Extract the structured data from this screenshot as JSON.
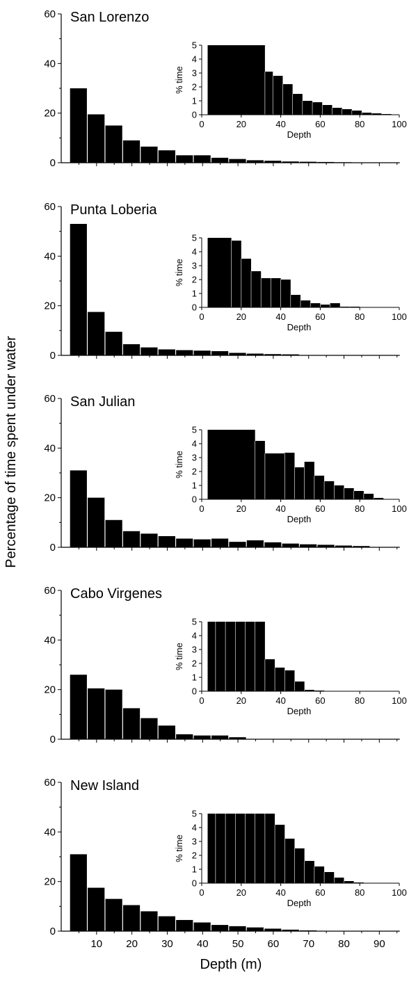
{
  "chart_data": {
    "type": "bar",
    "figure": {
      "ylabel": "Percentage of time spent under water",
      "xlabel": "Depth (m)",
      "x_ticks": [
        10,
        20,
        30,
        40,
        50,
        60,
        70,
        80,
        90
      ],
      "y_ticks": [
        0,
        20,
        40,
        60
      ]
    },
    "bin_width": 5,
    "panels": [
      {
        "title": "San Lorenzo",
        "x_range": [
          0,
          95
        ],
        "ylim": [
          0,
          60
        ],
        "bin_starts": [
          2.5,
          7.5,
          12.5,
          17.5,
          22.5,
          27.5,
          32.5,
          37.5,
          42.5,
          47.5,
          52.5,
          57.5,
          62.5,
          67.5,
          72.5,
          77.5
        ],
        "values": [
          30,
          19.5,
          15,
          9,
          6.5,
          5,
          3,
          3,
          2,
          1.5,
          1,
          0.8,
          0.5,
          0.4,
          0.3,
          0.2
        ],
        "inset": {
          "xlabel": "Depth",
          "ylabel": "% time",
          "x_ticks": [
            0,
            20,
            40,
            60,
            80,
            100
          ],
          "y_ticks": [
            0,
            1,
            2,
            3,
            4,
            5
          ],
          "xlim": [
            0,
            100
          ],
          "ylim": [
            0,
            5
          ],
          "bin_starts": [
            3,
            32,
            36,
            41,
            46,
            51,
            56,
            61,
            66,
            71,
            76,
            81,
            86,
            91
          ],
          "bin_ends": [
            32,
            36,
            41,
            46,
            51,
            56,
            61,
            66,
            71,
            76,
            81,
            86,
            91,
            96
          ],
          "values": [
            5,
            3.1,
            2.8,
            2.2,
            1.5,
            1.0,
            0.9,
            0.7,
            0.5,
            0.4,
            0.3,
            0.15,
            0.1,
            0.05
          ]
        }
      },
      {
        "title": "Punta Loberia",
        "x_range": [
          0,
          95
        ],
        "ylim": [
          0,
          60
        ],
        "bin_starts": [
          2.5,
          7.5,
          12.5,
          17.5,
          22.5,
          27.5,
          32.5,
          37.5,
          42.5,
          47.5,
          52.5,
          57.5,
          62.5
        ],
        "values": [
          53,
          17.5,
          9.5,
          4.5,
          3.2,
          2.4,
          2.1,
          1.9,
          1.7,
          1.0,
          0.7,
          0.5,
          0.4
        ],
        "inset": {
          "xlabel": "Depth",
          "ylabel": "% time",
          "x_ticks": [
            0,
            20,
            40,
            60,
            80,
            100
          ],
          "y_ticks": [
            0,
            1,
            2,
            3,
            4,
            5
          ],
          "xlim": [
            0,
            100
          ],
          "ylim": [
            0,
            5
          ],
          "bin_starts": [
            3,
            15,
            20,
            25,
            30,
            35,
            40,
            45,
            50,
            55,
            60,
            65,
            70,
            75
          ],
          "bin_ends": [
            15,
            20,
            25,
            30,
            35,
            40,
            45,
            50,
            55,
            60,
            65,
            70,
            75,
            80
          ],
          "values": [
            5,
            4.8,
            3.5,
            2.6,
            2.1,
            2.1,
            2.0,
            0.9,
            0.5,
            0.3,
            0.2,
            0.3,
            0.05,
            0.05
          ]
        }
      },
      {
        "title": "San Julian",
        "x_range": [
          0,
          95
        ],
        "ylim": [
          0,
          60
        ],
        "bin_starts": [
          2.5,
          7.5,
          12.5,
          17.5,
          22.5,
          27.5,
          32.5,
          37.5,
          42.5,
          47.5,
          52.5,
          57.5,
          62.5,
          67.5,
          72.5,
          77.5,
          82.5
        ],
        "values": [
          31,
          20,
          11,
          6.5,
          5.5,
          4.5,
          3.5,
          3.2,
          3.5,
          2.2,
          2.8,
          2,
          1.5,
          1.2,
          1,
          0.7,
          0.5
        ],
        "inset": {
          "xlabel": "Depth",
          "ylabel": "% time",
          "x_ticks": [
            0,
            20,
            40,
            60,
            80,
            100
          ],
          "y_ticks": [
            0,
            1,
            2,
            3,
            4,
            5
          ],
          "xlim": [
            0,
            100
          ],
          "ylim": [
            0,
            5
          ],
          "bin_starts": [
            3,
            27,
            32,
            42,
            47,
            52,
            57,
            62,
            67,
            72,
            77,
            82,
            87
          ],
          "bin_ends": [
            27,
            32,
            42,
            47,
            52,
            57,
            62,
            67,
            72,
            77,
            82,
            87,
            92
          ],
          "values": [
            5,
            4.2,
            3.3,
            3.35,
            2.3,
            2.7,
            1.7,
            1.3,
            1.0,
            0.8,
            0.6,
            0.4,
            0.1
          ]
        }
      },
      {
        "title": "Cabo Virgenes",
        "x_range": [
          0,
          95
        ],
        "ylim": [
          0,
          60
        ],
        "bin_starts": [
          2.5,
          7.5,
          12.5,
          17.5,
          22.5,
          27.5,
          32.5,
          37.5,
          42.5,
          47.5
        ],
        "values": [
          26,
          20.5,
          20,
          12.5,
          8.5,
          5.5,
          2,
          1.5,
          1.5,
          0.8
        ],
        "inset": {
          "xlabel": "Depth",
          "ylabel": "% time",
          "x_ticks": [
            0,
            20,
            40,
            60,
            80,
            100
          ],
          "y_ticks": [
            0,
            1,
            2,
            3,
            4,
            5
          ],
          "xlim": [
            0,
            100
          ],
          "ylim": [
            0,
            5
          ],
          "bin_starts": [
            3,
            7,
            12,
            17,
            22,
            27,
            32,
            37,
            42,
            47,
            52,
            57
          ],
          "bin_ends": [
            7,
            12,
            17,
            22,
            27,
            32,
            37,
            42,
            47,
            52,
            57,
            62
          ],
          "values": [
            5,
            5,
            5,
            5,
            5,
            5,
            2.3,
            1.7,
            1.5,
            0.7,
            0.1,
            0.05
          ]
        }
      },
      {
        "title": "New Island",
        "x_range": [
          0,
          95
        ],
        "ylim": [
          0,
          60
        ],
        "bin_starts": [
          2.5,
          7.5,
          12.5,
          17.5,
          22.5,
          27.5,
          32.5,
          37.5,
          42.5,
          47.5,
          52.5,
          57.5,
          62.5,
          67.5
        ],
        "values": [
          31,
          17.5,
          13,
          10.5,
          8,
          6,
          4.5,
          3.5,
          2.5,
          2,
          1.5,
          1,
          0.6,
          0.3
        ],
        "inset": {
          "xlabel": "Depth",
          "ylabel": "% time",
          "x_ticks": [
            0,
            20,
            40,
            60,
            80,
            100
          ],
          "y_ticks": [
            0,
            1,
            2,
            3,
            4,
            5
          ],
          "xlim": [
            0,
            100
          ],
          "ylim": [
            0,
            5
          ],
          "bin_starts": [
            3,
            7,
            12,
            17,
            22,
            27,
            32,
            37,
            42,
            47,
            52,
            57,
            62,
            67,
            72,
            77
          ],
          "bin_ends": [
            7,
            12,
            17,
            22,
            27,
            32,
            37,
            42,
            47,
            52,
            57,
            62,
            67,
            72,
            77,
            82
          ],
          "values": [
            5,
            5,
            5,
            5,
            5,
            5,
            5,
            4.2,
            3.2,
            2.5,
            1.6,
            1.2,
            0.8,
            0.4,
            0.15,
            0.05
          ]
        }
      }
    ]
  }
}
